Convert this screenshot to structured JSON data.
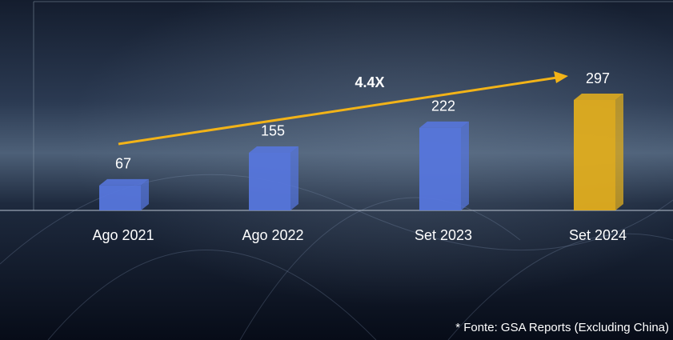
{
  "chart_data": {
    "type": "bar",
    "categories": [
      "Ago 2021",
      "Ago 2022",
      "Set 2023",
      "Set 2024"
    ],
    "values": [
      67,
      155,
      222,
      297
    ],
    "colors": [
      "#5676dc",
      "#5676dc",
      "#5676dc",
      "#e0ad1e"
    ],
    "annotation": "4.4X",
    "footnote": "* Fonte: GSA Reports (Excluding China)"
  }
}
